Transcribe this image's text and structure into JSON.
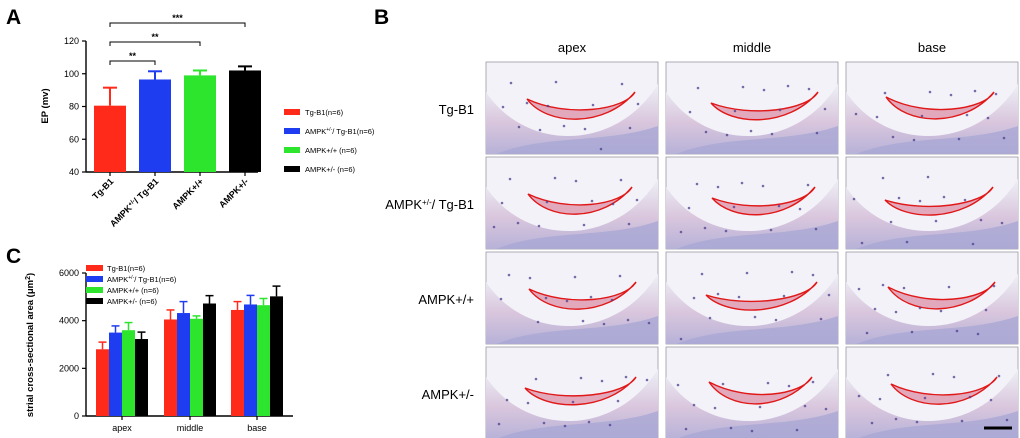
{
  "panels": {
    "a": "A",
    "b": "B",
    "c": "C"
  },
  "colors": {
    "red": "#ff2a1a",
    "blue": "#1f3df0",
    "green": "#2ee52e",
    "black": "#000000"
  },
  "chart_data": [
    {
      "type": "bar",
      "panel": "A",
      "ylabel": "EP (mv)",
      "ylim": [
        40,
        120
      ],
      "yticks": [
        "40",
        "60",
        "80",
        "100",
        "120"
      ],
      "categories": [
        "Tg-B1",
        "AMPK+/-/ Tg-B1",
        "AMPK+/+",
        "AMPK+/-"
      ],
      "category_labels": [
        {
          "main": "Tg-B1",
          "sup": "",
          "rest": ""
        },
        {
          "main": "AMPK",
          "sup": "+/-",
          "rest": "/ Tg-B1"
        },
        {
          "main": "AMPK+/+",
          "sup": "",
          "rest": ""
        },
        {
          "main": "AMPK+/-",
          "sup": "",
          "rest": ""
        }
      ],
      "values": [
        80.5,
        96.5,
        99,
        102
      ],
      "errors": [
        11,
        5,
        3,
        2.5
      ],
      "legend": [
        {
          "main": "Tg-B1(n=6)",
          "sup": "",
          "rest": ""
        },
        {
          "main": "AMPK",
          "sup": "+/-",
          "rest": "/ Tg-B1(n=6)"
        },
        {
          "main": "AMPK+/+ (n=6)",
          "sup": "",
          "rest": ""
        },
        {
          "main": "AMPK+/- (n=6)",
          "sup": "",
          "rest": ""
        }
      ],
      "significance": [
        {
          "from": 0,
          "to": 1,
          "label": "**"
        },
        {
          "from": 0,
          "to": 2,
          "label": "**"
        },
        {
          "from": 0,
          "to": 3,
          "label": "***"
        }
      ]
    },
    {
      "type": "bar",
      "panel": "C",
      "ylabel_main": "strial cross-sectional  area (μm",
      "ylabel_sup": "2",
      "ylabel_end": ")",
      "ylim": [
        0,
        6000
      ],
      "yticks": [
        "0",
        "2000",
        "4000",
        "6000"
      ],
      "categories": [
        "apex",
        "middle",
        "base"
      ],
      "series": [
        {
          "name": "Tg-B1(n=6)",
          "values": [
            2800,
            4050,
            4450
          ],
          "errors": [
            300,
            400,
            350
          ]
        },
        {
          "name": "AMPK+/-/ Tg-B1(n=6)",
          "values": [
            3500,
            4320,
            4680
          ],
          "errors": [
            280,
            480,
            380
          ]
        },
        {
          "name": "AMPK+/+ (n=6)",
          "values": [
            3600,
            4080,
            4650
          ],
          "errors": [
            320,
            120,
            280
          ]
        },
        {
          "name": "AMPK+/- (n=6)",
          "values": [
            3230,
            4720,
            5020
          ],
          "errors": [
            290,
            330,
            430
          ]
        }
      ],
      "legend": [
        {
          "main": "Tg-B1(n=6)",
          "sup": "",
          "rest": ""
        },
        {
          "main": "AMPK",
          "sup": "+/-",
          "rest": "/ Tg-B1(n=6)"
        },
        {
          "main": "AMPK+/+ (n=6)",
          "sup": "",
          "rest": ""
        },
        {
          "main": "AMPK+/- (n=6)",
          "sup": "",
          "rest": ""
        }
      ]
    }
  ],
  "histology": {
    "columns": [
      "apex",
      "middle",
      "base"
    ],
    "rows": [
      {
        "main": "Tg-B1",
        "sup": "",
        "rest": ""
      },
      {
        "main": "AMPK",
        "sup": "+/-",
        "rest": "/ Tg-B1"
      },
      {
        "main": "AMPK+/+",
        "sup": "",
        "rest": ""
      },
      {
        "main": "AMPK+/-",
        "sup": "",
        "rest": ""
      }
    ]
  }
}
